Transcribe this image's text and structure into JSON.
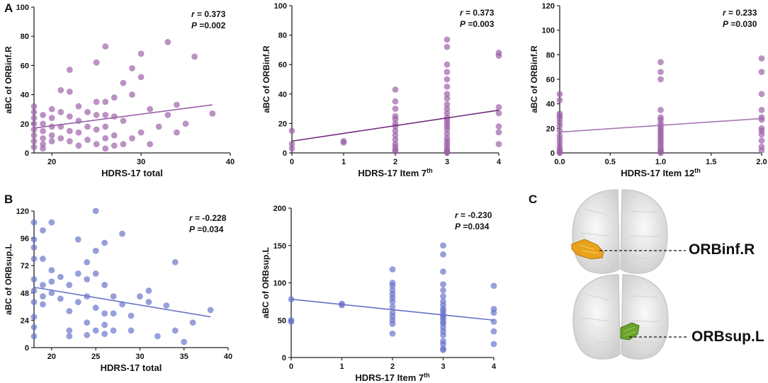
{
  "panels": {
    "A": "A",
    "B": "B",
    "C": "C"
  },
  "colors": {
    "purple_dot": "#9b5fa6",
    "purple_line": "#8e5aa0",
    "darkpurple_line": "#6e2a78",
    "blue_dot": "#6672c8",
    "blue_line": "#6670c8"
  },
  "brain": {
    "label_top": "ORBinf.R",
    "label_bottom": "ORBsup.L",
    "highlight_top_color": "#e8a21c",
    "highlight_bottom_color": "#6aa32a"
  },
  "chart_data": [
    {
      "id": "A1",
      "type": "scatter",
      "xlabel": "HDRS-17 total",
      "xlabel_sup": "",
      "ylabel": "aBC of ORBinf.R",
      "xlim": [
        18,
        40
      ],
      "ylim": [
        0,
        100
      ],
      "xticks": [
        "20",
        "30",
        "40"
      ],
      "xtick_values": [
        20,
        30,
        40
      ],
      "yticks": [
        "0",
        "20",
        "40",
        "60",
        "80",
        "100"
      ],
      "ytick_values": [
        0,
        20,
        40,
        60,
        80,
        100
      ],
      "r_label": "r",
      "r_value": " = 0.373",
      "p_label": "P",
      "p_value": " =0.002",
      "fit": {
        "x": [
          18,
          38
        ],
        "y": [
          17,
          33
        ]
      },
      "dot_color": "#9b5fa6",
      "line_color": "#9a62a8",
      "x": [
        18,
        18,
        18,
        18,
        18,
        18,
        18,
        18,
        19,
        19,
        19,
        19,
        19,
        19,
        20,
        20,
        20,
        20,
        20,
        21,
        21,
        21,
        21,
        22,
        22,
        22,
        22,
        22,
        23,
        23,
        23,
        23,
        24,
        24,
        24,
        25,
        25,
        25,
        25,
        25,
        26,
        26,
        26,
        26,
        26,
        26,
        27,
        27,
        27,
        27,
        28,
        28,
        28,
        29,
        29,
        29,
        30,
        30,
        30,
        31,
        31,
        32,
        33,
        33,
        34,
        34,
        35,
        36,
        38
      ],
      "y": [
        32,
        28,
        24,
        20,
        16,
        12,
        8,
        4,
        26,
        20,
        15,
        10,
        6,
        3,
        30,
        24,
        18,
        12,
        8,
        43,
        28,
        18,
        10,
        57,
        42,
        25,
        15,
        8,
        32,
        22,
        14,
        5,
        28,
        18,
        9,
        62,
        35,
        26,
        16,
        6,
        73,
        35,
        26,
        18,
        10,
        3,
        38,
        25,
        12,
        5,
        48,
        22,
        6,
        58,
        40,
        10,
        68,
        52,
        14,
        30,
        6,
        18,
        76,
        26,
        33,
        14,
        20,
        66,
        27
      ]
    },
    {
      "id": "A2",
      "type": "scatter",
      "xlabel": "HDRS-17 Item 7",
      "xlabel_sup": "th",
      "ylabel": "aBC of ORBinf.R",
      "xlim": [
        0,
        4
      ],
      "ylim": [
        0,
        100
      ],
      "xticks": [
        "0",
        "1",
        "2",
        "3",
        "4"
      ],
      "xtick_values": [
        0,
        1,
        2,
        3,
        4
      ],
      "yticks": [
        "0",
        "20",
        "40",
        "60",
        "80",
        "100"
      ],
      "ytick_values": [
        0,
        20,
        40,
        60,
        80,
        100
      ],
      "r_label": "r",
      "r_value": " = 0.373",
      "p_label": "P",
      "p_value": " =0.003",
      "fit": {
        "x": [
          0,
          4
        ],
        "y": [
          8,
          29
        ]
      },
      "dot_color": "#9b5fa6",
      "line_color": "#6e2a78",
      "x": [
        0,
        0,
        0,
        1,
        1,
        2,
        2,
        2,
        2,
        2,
        2,
        2,
        2,
        2,
        2,
        2,
        2,
        2,
        2,
        3,
        3,
        3,
        3,
        3,
        3,
        3,
        3,
        3,
        3,
        3,
        3,
        3,
        3,
        3,
        3,
        3,
        3,
        3,
        3,
        3,
        3,
        3,
        3,
        4,
        4,
        4,
        4,
        4,
        4,
        4
      ],
      "y": [
        15,
        6,
        3,
        8,
        7,
        43,
        35,
        30,
        25,
        23,
        20,
        18,
        15,
        12,
        9,
        6,
        4,
        2,
        1,
        77,
        72,
        60,
        55,
        50,
        45,
        40,
        37,
        33,
        30,
        27,
        24,
        22,
        20,
        18,
        16,
        13,
        10,
        8,
        6,
        4,
        2,
        0,
        1,
        68,
        66,
        31,
        27,
        18,
        14,
        6
      ]
    },
    {
      "id": "A3",
      "type": "scatter",
      "xlabel": "HDRS-17 Item 12",
      "xlabel_sup": "th",
      "ylabel": "aBC of ORBinf.R",
      "xlim": [
        0,
        2
      ],
      "ylim": [
        0,
        120
      ],
      "xticks": [
        "0.0",
        "0.5",
        "1.0",
        "1.5",
        "2.0"
      ],
      "xtick_values": [
        0,
        0.5,
        1,
        1.5,
        2
      ],
      "yticks": [
        "0",
        "20",
        "40",
        "60",
        "80",
        "100",
        "120"
      ],
      "ytick_values": [
        0,
        20,
        40,
        60,
        80,
        100,
        120
      ],
      "r_label": "r",
      "r_value": " = 0.233",
      "p_label": "P",
      "p_value": " =0.030",
      "fit": {
        "x": [
          0,
          2
        ],
        "y": [
          17,
          28
        ]
      },
      "dot_color": "#9b5fa6",
      "line_color": "#a678b2",
      "x": [
        0,
        0,
        0,
        0,
        0,
        0,
        0,
        0,
        0,
        0,
        0,
        0,
        0,
        0,
        0,
        1,
        1,
        1,
        1,
        1,
        1,
        1,
        1,
        1,
        1,
        1,
        1,
        1,
        1,
        1,
        1,
        1,
        1,
        1,
        1,
        2,
        2,
        2,
        2,
        2,
        2,
        2,
        2,
        2,
        2,
        2,
        2
      ],
      "y": [
        48,
        43,
        32,
        30,
        28,
        25,
        22,
        18,
        14,
        11,
        8,
        5,
        3,
        1,
        0,
        74,
        66,
        60,
        35,
        29,
        27,
        24,
        22,
        20,
        18,
        16,
        14,
        12,
        10,
        8,
        6,
        4,
        2,
        1,
        0,
        77,
        66,
        48,
        35,
        29,
        27,
        20,
        18,
        15,
        10,
        5,
        2
      ]
    },
    {
      "id": "B1",
      "type": "scatter",
      "xlabel": "HDRS-17 total",
      "xlabel_sup": "",
      "ylabel": "aBC of ORBsup.L",
      "xlim": [
        18,
        40
      ],
      "ylim": [
        0,
        120
      ],
      "xticks": [
        "20",
        "25",
        "30",
        "35",
        "40"
      ],
      "xtick_values": [
        20,
        25,
        30,
        35,
        40
      ],
      "yticks": [
        "0",
        "24",
        "48",
        "72",
        "96",
        "120"
      ],
      "ytick_values": [
        0,
        24,
        48,
        72,
        96,
        120
      ],
      "r_label": "r",
      "r_value": " = -0.228",
      "p_label": "P",
      "p_value": " =0.034",
      "fit": {
        "x": [
          18,
          38
        ],
        "y": [
          53,
          27
        ]
      },
      "dot_color": "#6672c8",
      "line_color": "#6a74c8",
      "x": [
        18,
        18,
        18,
        18,
        18,
        18,
        18,
        18,
        18,
        18,
        19,
        19,
        19,
        19,
        19,
        20,
        20,
        20,
        20,
        21,
        21,
        22,
        22,
        22,
        22,
        23,
        23,
        23,
        24,
        24,
        24,
        24,
        24,
        25,
        25,
        25,
        25,
        25,
        26,
        26,
        26,
        26,
        26,
        27,
        27,
        27,
        28,
        28,
        29,
        29,
        30,
        31,
        31,
        32,
        33,
        34,
        34,
        35,
        36,
        38
      ],
      "y": [
        110,
        95,
        88,
        78,
        60,
        50,
        40,
        27,
        18,
        10,
        103,
        78,
        55,
        45,
        38,
        110,
        68,
        58,
        48,
        62,
        43,
        55,
        32,
        15,
        10,
        95,
        65,
        40,
        75,
        60,
        45,
        22,
        11,
        120,
        85,
        65,
        35,
        15,
        92,
        55,
        30,
        20,
        12,
        45,
        30,
        15,
        100,
        38,
        28,
        15,
        45,
        50,
        40,
        10,
        37,
        75,
        15,
        5,
        22,
        33
      ]
    },
    {
      "id": "B2",
      "type": "scatter",
      "xlabel": "HDRS-17 Item 7",
      "xlabel_sup": "th",
      "ylabel": "aBC of ORBsup.L",
      "xlim": [
        0,
        4
      ],
      "ylim": [
        0,
        200
      ],
      "xticks": [
        "0",
        "1",
        "2",
        "3",
        "4"
      ],
      "xtick_values": [
        0,
        1,
        2,
        3,
        4
      ],
      "yticks": [
        "0",
        "50",
        "100",
        "150",
        "200"
      ],
      "ytick_values": [
        0,
        50,
        100,
        150,
        200
      ],
      "r_label": "r",
      "r_value": " = -0.230",
      "p_label": "P",
      "p_value": " =0.034",
      "fit": {
        "x": [
          0,
          4
        ],
        "y": [
          78,
          50
        ]
      },
      "dot_color": "#6672c8",
      "line_color": "#6670c8",
      "x": [
        0,
        0,
        0,
        1,
        1,
        2,
        2,
        2,
        2,
        2,
        2,
        2,
        2,
        2,
        2,
        2,
        2,
        2,
        3,
        3,
        3,
        3,
        3,
        3,
        3,
        3,
        3,
        3,
        3,
        3,
        3,
        3,
        3,
        3,
        3,
        3,
        3,
        3,
        3,
        3,
        4,
        4,
        4,
        4,
        4,
        4
      ],
      "y": [
        78,
        50,
        48,
        72,
        70,
        118,
        100,
        96,
        90,
        85,
        80,
        75,
        68,
        60,
        55,
        50,
        45,
        32,
        150,
        138,
        115,
        98,
        90,
        82,
        75,
        70,
        65,
        62,
        58,
        55,
        52,
        48,
        45,
        40,
        35,
        30,
        22,
        18,
        12,
        10,
        96,
        65,
        60,
        48,
        35,
        18
      ]
    }
  ]
}
